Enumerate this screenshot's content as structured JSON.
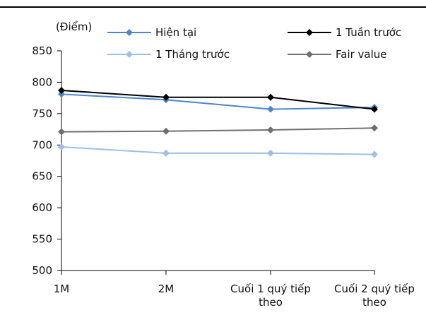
{
  "chart_data": {
    "type": "line",
    "title": "",
    "ylabel": "(Điểm)",
    "xlabel": "",
    "ylim": [
      500,
      850
    ],
    "yticks": [
      500,
      550,
      600,
      650,
      700,
      750,
      800,
      850
    ],
    "categories": [
      [
        "1M"
      ],
      [
        "2M"
      ],
      [
        "Cuối 1 quý tiếp",
        "theo"
      ],
      [
        "Cuối 2 quý tiếp",
        "theo"
      ]
    ],
    "legend_position": "top",
    "series": [
      {
        "name": "Hiện tại",
        "color": "#4a86c8",
        "marker": "diamond",
        "values": [
          781,
          772,
          757,
          760
        ]
      },
      {
        "name": "1 Tuần trước",
        "color": "#000000",
        "marker": "diamond",
        "values": [
          787,
          776,
          776,
          757
        ]
      },
      {
        "name": "1 Tháng trước",
        "color": "#9fbfe6",
        "marker": "diamond",
        "values": [
          697,
          687,
          687,
          685
        ]
      },
      {
        "name": "Fair value",
        "color": "#707070",
        "marker": "diamond",
        "values": [
          721,
          722,
          724,
          727
        ]
      }
    ]
  }
}
